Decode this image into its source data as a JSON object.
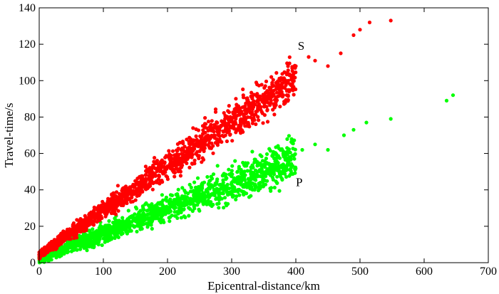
{
  "chart_data": {
    "type": "scatter",
    "xlabel": "Epicentral-distance/km",
    "ylabel": "Travel-time/s",
    "xlim": [
      0,
      700
    ],
    "ylim": [
      0,
      140
    ],
    "x_ticks": [
      "0",
      "100",
      "200",
      "300",
      "400",
      "500",
      "600",
      "700"
    ],
    "y_ticks": [
      "0",
      "20",
      "40",
      "60",
      "80",
      "100",
      "120",
      "140"
    ],
    "grid": false,
    "series": [
      {
        "name": "S",
        "color": "#ff0000",
        "trend": {
          "slope": 0.243,
          "intercept": 4.5
        },
        "x_range": [
          0,
          550
        ],
        "sample_points": [
          [
            20,
            10
          ],
          [
            50,
            16
          ],
          [
            80,
            24
          ],
          [
            100,
            29
          ],
          [
            130,
            37
          ],
          [
            160,
            43
          ],
          [
            200,
            53
          ],
          [
            230,
            60
          ],
          [
            260,
            67
          ],
          [
            300,
            78
          ],
          [
            330,
            85
          ],
          [
            360,
            95
          ],
          [
            390,
            103
          ],
          [
            400,
            108
          ],
          [
            420,
            113
          ],
          [
            430,
            111
          ],
          [
            450,
            108
          ],
          [
            470,
            115
          ],
          [
            490,
            125
          ],
          [
            500,
            128
          ],
          [
            515,
            132
          ],
          [
            548,
            133
          ]
        ]
      },
      {
        "name": "P",
        "color": "#00ff00",
        "trend": {
          "slope": 0.139,
          "intercept": 2.0
        },
        "x_range": [
          0,
          650
        ],
        "sample_points": [
          [
            20,
            5
          ],
          [
            50,
            9
          ],
          [
            80,
            13
          ],
          [
            100,
            16
          ],
          [
            130,
            20
          ],
          [
            160,
            24
          ],
          [
            200,
            30
          ],
          [
            230,
            34
          ],
          [
            260,
            39
          ],
          [
            300,
            44
          ],
          [
            330,
            49
          ],
          [
            360,
            53
          ],
          [
            390,
            58
          ],
          [
            410,
            62
          ],
          [
            430,
            65
          ],
          [
            450,
            62
          ],
          [
            475,
            70
          ],
          [
            490,
            73
          ],
          [
            510,
            77
          ],
          [
            548,
            79
          ],
          [
            635,
            89
          ],
          [
            645,
            92
          ]
        ]
      }
    ],
    "annotations": [
      {
        "text": "S",
        "x": 403,
        "y": 117
      },
      {
        "text": "P",
        "x": 400,
        "y": 42
      }
    ]
  }
}
